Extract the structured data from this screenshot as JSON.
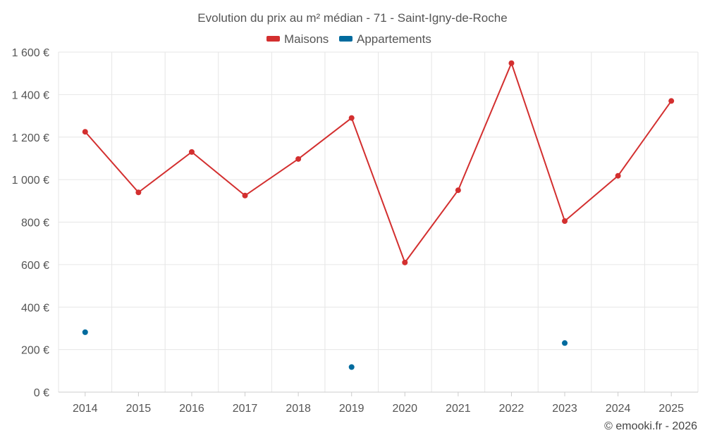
{
  "chart_data": {
    "type": "line",
    "title": "Evolution du prix au m² médian - 71 - Saint-Igny-de-Roche",
    "categories": [
      "2014",
      "2015",
      "2016",
      "2017",
      "2018",
      "2019",
      "2020",
      "2021",
      "2022",
      "2023",
      "2024",
      "2025"
    ],
    "ylim": [
      0,
      1600
    ],
    "yticks": [
      0,
      200,
      400,
      600,
      800,
      1000,
      1200,
      1400,
      1600
    ],
    "ytick_labels": [
      "0 €",
      "200 €",
      "400 €",
      "600 €",
      "800 €",
      "1 000 €",
      "1 200 €",
      "1 400 €",
      "1 600 €"
    ],
    "xlabel": "",
    "ylabel": "",
    "grid": true,
    "legend_position": "top-center",
    "series": [
      {
        "name": "Maisons",
        "color": "#d32f2f",
        "values": [
          1225,
          940,
          1130,
          925,
          1097,
          1290,
          610,
          950,
          1548,
          805,
          1018,
          1370
        ]
      },
      {
        "name": "Appartements",
        "color": "#006b9e",
        "values": [
          282,
          null,
          null,
          null,
          null,
          118,
          null,
          null,
          null,
          231,
          null,
          null
        ]
      }
    ],
    "credit": "© emooki.fr - 2026"
  }
}
